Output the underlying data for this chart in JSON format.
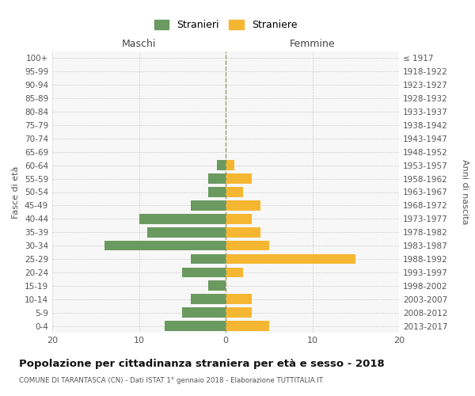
{
  "age_groups": [
    "0-4",
    "5-9",
    "10-14",
    "15-19",
    "20-24",
    "25-29",
    "30-34",
    "35-39",
    "40-44",
    "45-49",
    "50-54",
    "55-59",
    "60-64",
    "65-69",
    "70-74",
    "75-79",
    "80-84",
    "85-89",
    "90-94",
    "95-99",
    "100+"
  ],
  "birth_years": [
    "2013-2017",
    "2008-2012",
    "2003-2007",
    "1998-2002",
    "1993-1997",
    "1988-1992",
    "1983-1987",
    "1978-1982",
    "1973-1977",
    "1968-1972",
    "1963-1967",
    "1958-1962",
    "1953-1957",
    "1948-1952",
    "1943-1947",
    "1938-1942",
    "1933-1937",
    "1928-1932",
    "1923-1927",
    "1918-1922",
    "≤ 1917"
  ],
  "maschi": [
    7,
    5,
    4,
    2,
    5,
    4,
    14,
    9,
    10,
    4,
    2,
    2,
    1,
    0,
    0,
    0,
    0,
    0,
    0,
    0,
    0
  ],
  "femmine": [
    5,
    3,
    3,
    0,
    2,
    15,
    5,
    4,
    3,
    4,
    2,
    3,
    1,
    0,
    0,
    0,
    0,
    0,
    0,
    0,
    0
  ],
  "color_maschi": "#6a9a5f",
  "color_femmine": "#f5b731",
  "bg_plot": "#f7f7f7",
  "bg_fig": "#ffffff",
  "grid_color": "#cccccc",
  "title": "Popolazione per cittadinanza straniera per età e sesso - 2018",
  "subtitle": "COMUNE DI TARANTASCA (CN) - Dati ISTAT 1° gennaio 2018 - Elaborazione TUTTITALIA.IT",
  "label_maschi": "Maschi",
  "label_femmine": "Femmine",
  "ylabel_left": "Fasce di età",
  "ylabel_right": "Anni di nascita",
  "legend_maschi": "Stranieri",
  "legend_femmine": "Straniere",
  "xlim": 20,
  "bar_height": 0.75,
  "center_line_color": "#999966"
}
